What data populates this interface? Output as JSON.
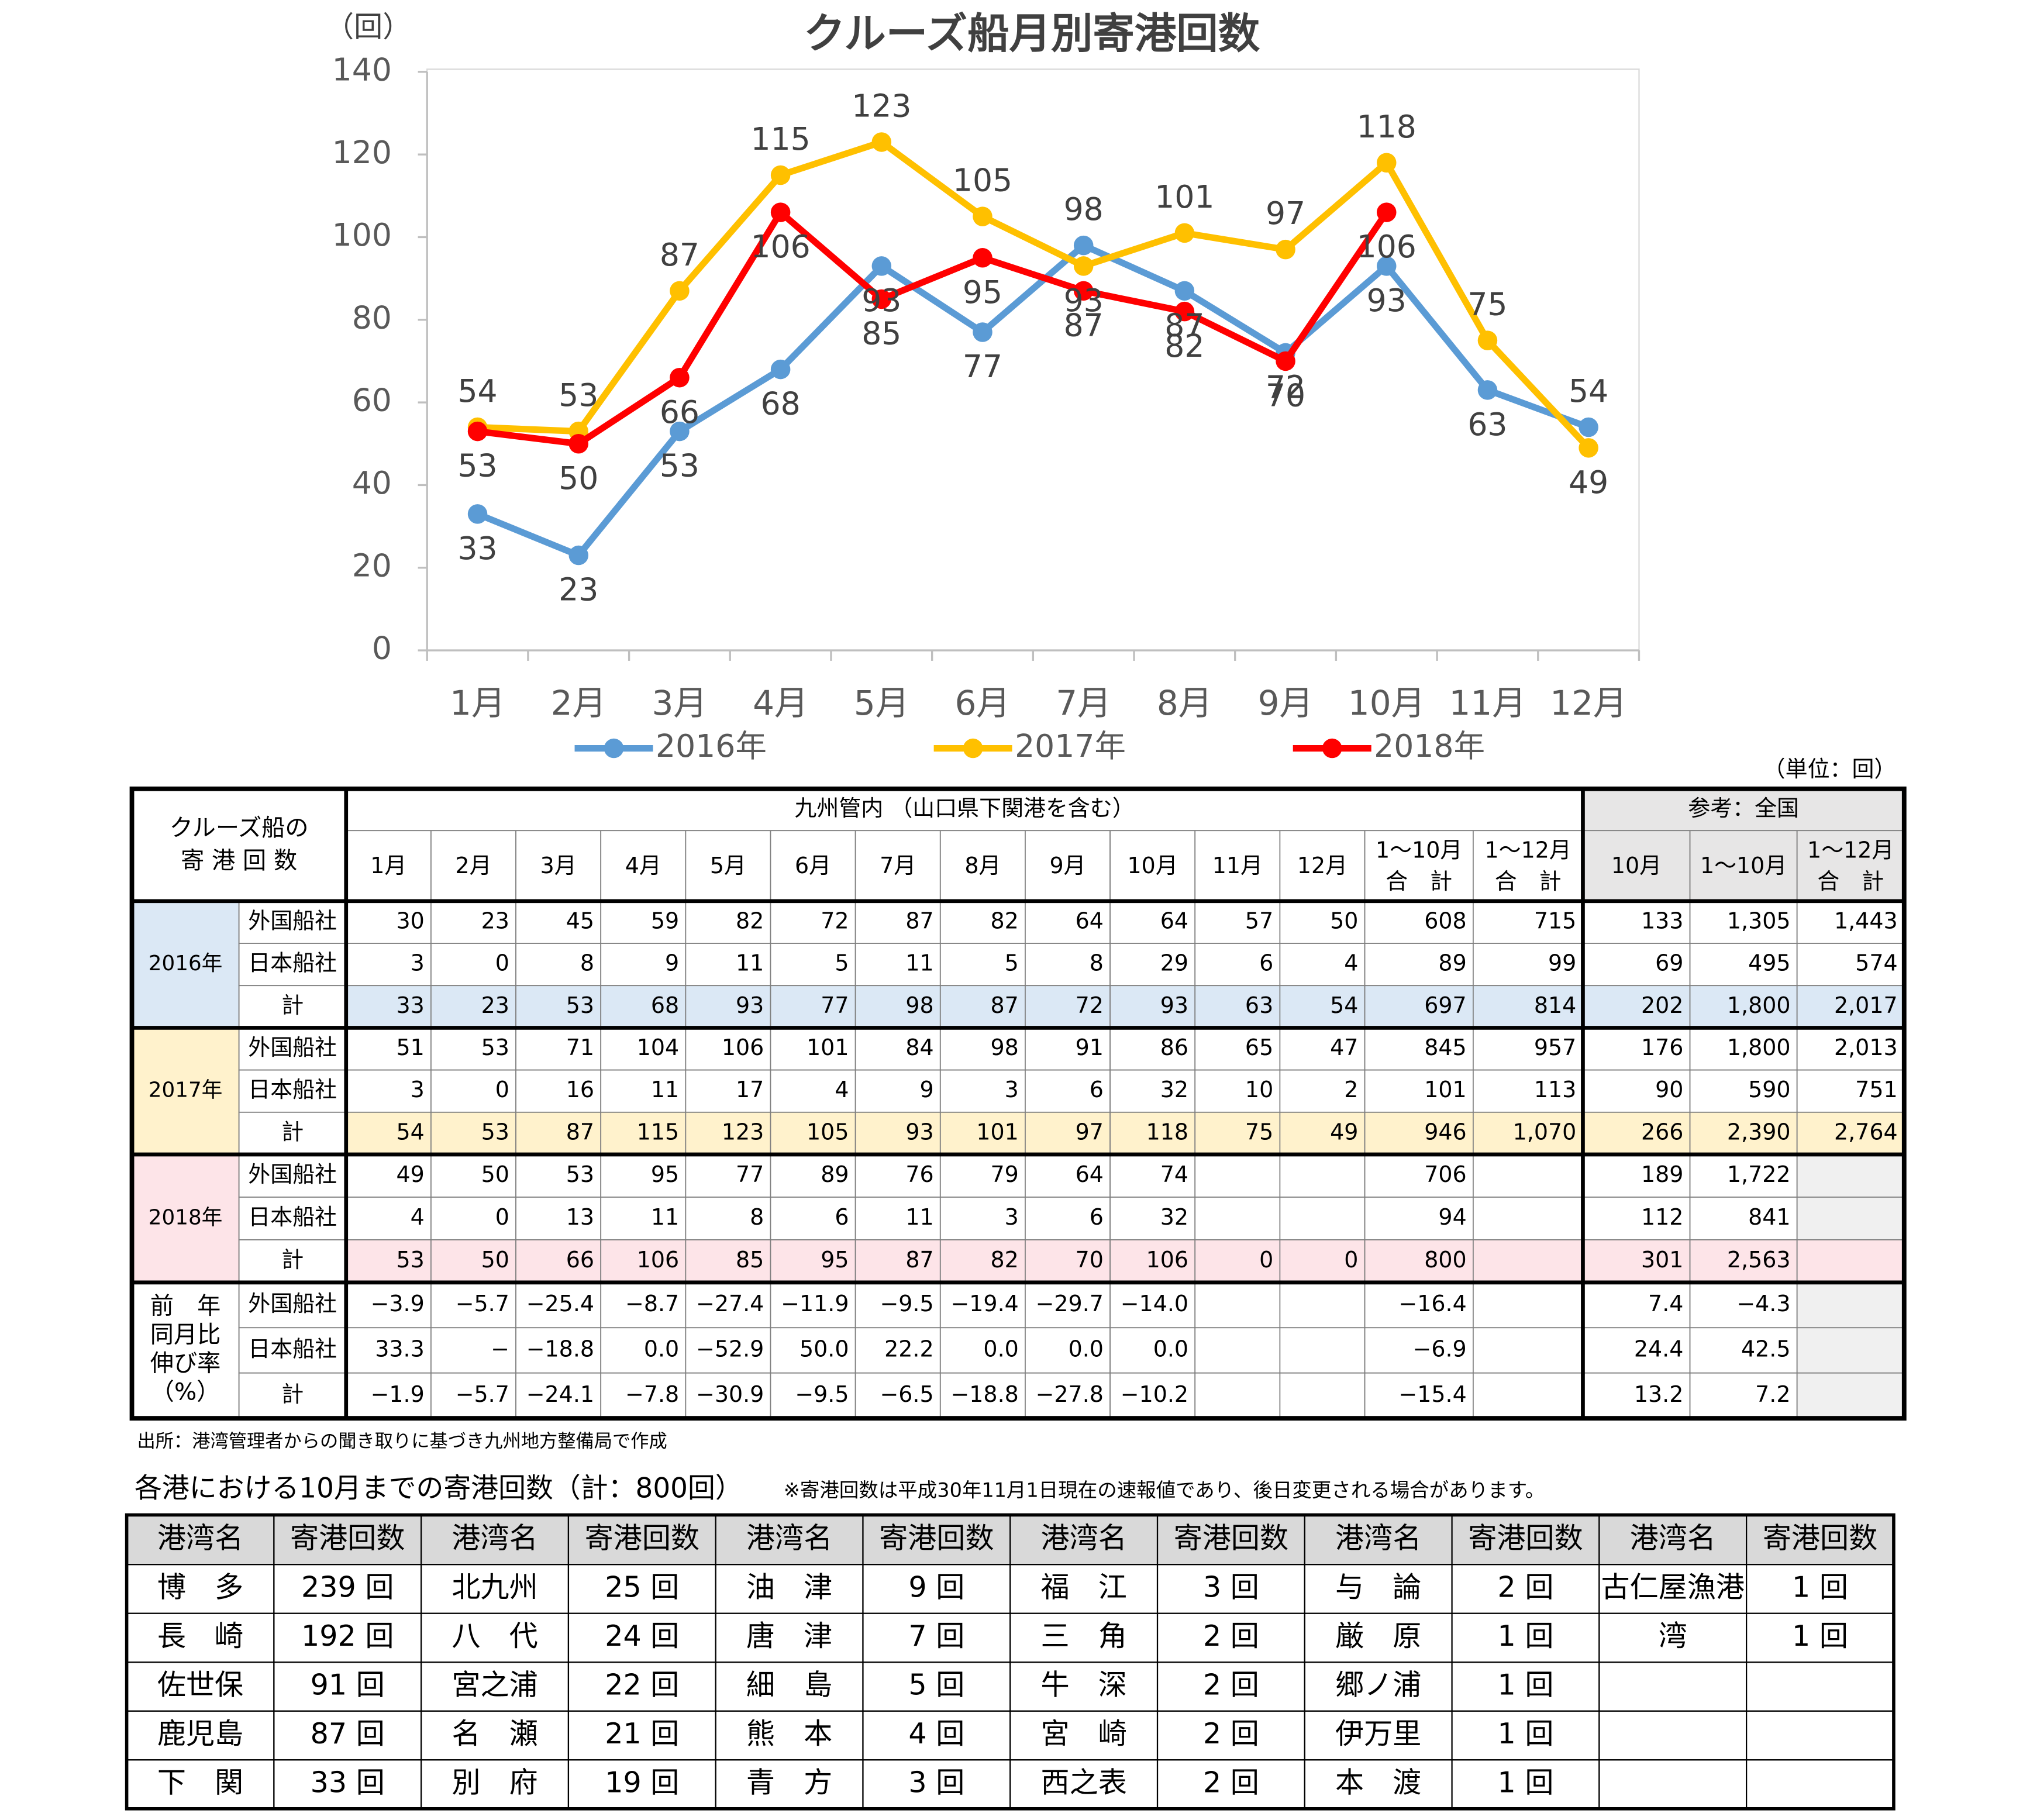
{
  "chart_data": {
    "type": "line",
    "title": "クルーズ船月別寄港回数",
    "y_unit": "（回）",
    "categories": [
      "1月",
      "2月",
      "3月",
      "4月",
      "5月",
      "6月",
      "7月",
      "8月",
      "9月",
      "10月",
      "11月",
      "12月"
    ],
    "series": [
      {
        "name": "2016年",
        "color": "#5b9bd5",
        "values": [
          33,
          23,
          53,
          68,
          93,
          77,
          98,
          87,
          72,
          93,
          63,
          54
        ]
      },
      {
        "name": "2017年",
        "color": "#ffc000",
        "values": [
          54,
          53,
          87,
          115,
          123,
          105,
          93,
          101,
          97,
          118,
          75,
          49
        ]
      },
      {
        "name": "2018年",
        "color": "#ff0000",
        "values": [
          53,
          50,
          66,
          106,
          85,
          95,
          87,
          82,
          70,
          106,
          null,
          null
        ]
      }
    ],
    "ylim": [
      0,
      140
    ],
    "yticks": [
      0,
      20,
      40,
      60,
      80,
      100,
      120,
      140
    ],
    "grid": false,
    "legend": "bottom"
  },
  "table": {
    "unit": "（単位：回）",
    "corner": [
      "クルーズ船の",
      "寄 港 回 数"
    ],
    "groups": [
      "九州管内 （山口県下関港を含む）",
      "参考：全国"
    ],
    "columns": [
      [
        "1月"
      ],
      [
        "2月"
      ],
      [
        "3月"
      ],
      [
        "4月"
      ],
      [
        "5月"
      ],
      [
        "6月"
      ],
      [
        "7月"
      ],
      [
        "8月"
      ],
      [
        "9月"
      ],
      [
        "10月"
      ],
      [
        "11月"
      ],
      [
        "12月"
      ],
      [
        "1～10月",
        "合　計"
      ],
      [
        "1～12月",
        "合　計"
      ],
      [
        "10月"
      ],
      [
        "1～10月"
      ],
      [
        "1～12月",
        "合　計"
      ]
    ],
    "blocks": [
      {
        "label": [
          "2016年"
        ],
        "rows": [
          {
            "label": "外国船社",
            "cells": [
              "30",
              "23",
              "45",
              "59",
              "82",
              "72",
              "87",
              "82",
              "64",
              "64",
              "57",
              "50",
              "608",
              "715",
              "133",
              "1,305",
              "1,443"
            ]
          },
          {
            "label": "日本船社",
            "cells": [
              "3",
              "0",
              "8",
              "9",
              "11",
              "5",
              "11",
              "5",
              "8",
              "29",
              "6",
              "4",
              "89",
              "99",
              "69",
              "495",
              "574"
            ]
          },
          {
            "label": "計",
            "cells": [
              "33",
              "23",
              "53",
              "68",
              "93",
              "77",
              "98",
              "87",
              "72",
              "93",
              "63",
              "54",
              "697",
              "814",
              "202",
              "1,800",
              "2,017"
            ]
          }
        ]
      },
      {
        "label": [
          "2017年"
        ],
        "rows": [
          {
            "label": "外国船社",
            "cells": [
              "51",
              "53",
              "71",
              "104",
              "106",
              "101",
              "84",
              "98",
              "91",
              "86",
              "65",
              "47",
              "845",
              "957",
              "176",
              "1,800",
              "2,013"
            ]
          },
          {
            "label": "日本船社",
            "cells": [
              "3",
              "0",
              "16",
              "11",
              "17",
              "4",
              "9",
              "3",
              "6",
              "32",
              "10",
              "2",
              "101",
              "113",
              "90",
              "590",
              "751"
            ]
          },
          {
            "label": "計",
            "cells": [
              "54",
              "53",
              "87",
              "115",
              "123",
              "105",
              "93",
              "101",
              "97",
              "118",
              "75",
              "49",
              "946",
              "1,070",
              "266",
              "2,390",
              "2,764"
            ]
          }
        ]
      },
      {
        "label": [
          "2018年"
        ],
        "rows": [
          {
            "label": "外国船社",
            "cells": [
              "49",
              "50",
              "53",
              "95",
              "77",
              "89",
              "76",
              "79",
              "64",
              "74",
              null,
              null,
              "706",
              null,
              "189",
              "1,722",
              null
            ]
          },
          {
            "label": "日本船社",
            "cells": [
              "4",
              "0",
              "13",
              "11",
              "8",
              "6",
              "11",
              "3",
              "6",
              "32",
              null,
              null,
              "94",
              null,
              "112",
              "841",
              null
            ]
          },
          {
            "label": "計",
            "cells": [
              "53",
              "50",
              "66",
              "106",
              "85",
              "95",
              "87",
              "82",
              "70",
              "106",
              "0",
              "0",
              "800",
              null,
              "301",
              "2,563",
              null
            ]
          }
        ]
      },
      {
        "label": [
          "前　年",
          "同月比",
          "伸び率",
          "（%）"
        ],
        "rows": [
          {
            "label": "外国船社",
            "cells": [
              "−3.9",
              "−5.7",
              "−25.4",
              "−8.7",
              "−27.4",
              "−11.9",
              "−9.5",
              "−19.4",
              "−29.7",
              "−14.0",
              null,
              null,
              "−16.4",
              null,
              "7.4",
              "−4.3",
              null
            ]
          },
          {
            "label": "日本船社",
            "cells": [
              "33.3",
              "−",
              "−18.8",
              "0.0",
              "−52.9",
              "50.0",
              "22.2",
              "0.0",
              "0.0",
              "0.0",
              null,
              null,
              "−6.9",
              null,
              "24.4",
              "42.5",
              null
            ]
          },
          {
            "label": "計",
            "cells": [
              "−1.9",
              "−5.7",
              "−24.1",
              "−7.8",
              "−30.9",
              "−9.5",
              "−6.5",
              "−18.8",
              "−27.8",
              "−10.2",
              null,
              null,
              "−15.4",
              null,
              "13.2",
              "7.2",
              null
            ]
          }
        ]
      }
    ]
  },
  "source": "出所：港湾管理者からの聞き取りに基づき九州地方整備局で作成",
  "ports": {
    "title": "各港における10月までの寄港回数（計：800回）",
    "note": "※寄港回数は平成30年11月1日現在の速報値であり、後日変更される場合があります。",
    "header": [
      "港湾名",
      "寄港回数"
    ],
    "rows": [
      [
        "博　多",
        "239 回",
        "北九州",
        "25 回",
        "油　津",
        "9 回",
        "福　江",
        "3 回",
        "与　論",
        "2 回",
        "古仁屋漁港",
        "1 回"
      ],
      [
        "長　崎",
        "192 回",
        "八　代",
        "24 回",
        "唐　津",
        "7 回",
        "三　角",
        "2 回",
        "厳　原",
        "1 回",
        "湾",
        "1 回"
      ],
      [
        "佐世保",
        "91 回",
        "宮之浦",
        "22 回",
        "細　島",
        "5 回",
        "牛　深",
        "2 回",
        "郷ノ浦",
        "1 回",
        null,
        null
      ],
      [
        "鹿児島",
        "87 回",
        "名　瀬",
        "21 回",
        "熊　本",
        "4 回",
        "宮　崎",
        "2 回",
        "伊万里",
        "1 回",
        null,
        null
      ],
      [
        "下　関",
        "33 回",
        "別　府",
        "19 回",
        "青　方",
        "3 回",
        "西之表",
        "2 回",
        "本　渡",
        "1 回",
        null,
        null
      ]
    ]
  }
}
